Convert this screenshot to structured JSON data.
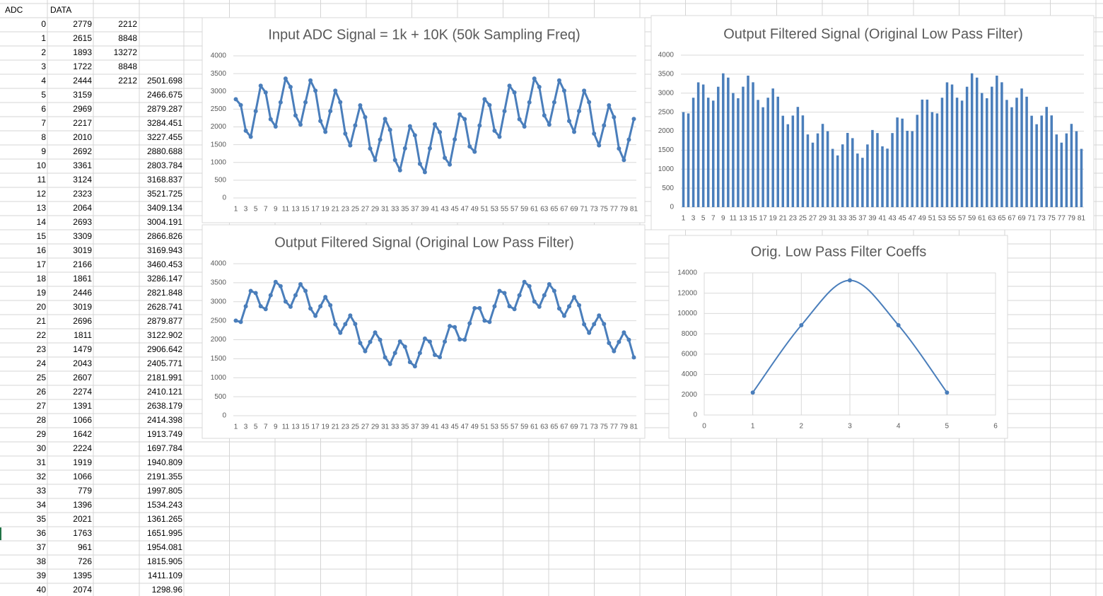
{
  "sheet": {
    "headers": [
      "ADC",
      "DATA"
    ],
    "rows": [
      {
        "adc": 0,
        "data": 2779,
        "coeff": 2212
      },
      {
        "adc": 1,
        "data": 2615,
        "coeff": 8848
      },
      {
        "adc": 2,
        "data": 1893,
        "coeff": 13272
      },
      {
        "adc": 3,
        "data": 1722,
        "coeff": 8848
      },
      {
        "adc": 4,
        "data": 2444,
        "coeff": 2212,
        "filtered": 2501.698
      },
      {
        "adc": 5,
        "data": 3159,
        "filtered": 2466.675
      },
      {
        "adc": 6,
        "data": 2969,
        "filtered": 2879.287
      },
      {
        "adc": 7,
        "data": 2217,
        "filtered": 3284.451
      },
      {
        "adc": 8,
        "data": 2010,
        "filtered": 3227.455
      },
      {
        "adc": 9,
        "data": 2692,
        "filtered": 2880.688
      },
      {
        "adc": 10,
        "data": 3361,
        "filtered": 2803.784
      },
      {
        "adc": 11,
        "data": 3124,
        "filtered": 3168.837
      },
      {
        "adc": 12,
        "data": 2323,
        "filtered": 3521.725
      },
      {
        "adc": 13,
        "data": 2064,
        "filtered": 3409.134
      },
      {
        "adc": 14,
        "data": 2693,
        "filtered": 3004.191
      },
      {
        "adc": 15,
        "data": 3309,
        "filtered": 2866.826
      },
      {
        "adc": 16,
        "data": 3019,
        "filtered": 3169.943
      },
      {
        "adc": 17,
        "data": 2166,
        "filtered": 3460.453
      },
      {
        "adc": 18,
        "data": 1861,
        "filtered": 3286.147
      },
      {
        "adc": 19,
        "data": 2446,
        "filtered": 2821.848
      },
      {
        "adc": 20,
        "data": 3019,
        "filtered": 2628.741
      },
      {
        "adc": 21,
        "data": 2696,
        "filtered": 2879.877
      },
      {
        "adc": 22,
        "data": 1811,
        "filtered": 3122.902
      },
      {
        "adc": 23,
        "data": 1479,
        "filtered": 2906.642
      },
      {
        "adc": 24,
        "data": 2043,
        "filtered": 2405.771
      },
      {
        "adc": 25,
        "data": 2607,
        "filtered": 2181.991
      },
      {
        "adc": 26,
        "data": 2274,
        "filtered": 2410.121
      },
      {
        "adc": 27,
        "data": 1391,
        "filtered": 2638.179
      },
      {
        "adc": 28,
        "data": 1066,
        "filtered": 2414.398
      },
      {
        "adc": 29,
        "data": 1642,
        "filtered": 1913.749
      },
      {
        "adc": 30,
        "data": 2224,
        "filtered": 1697.784
      },
      {
        "adc": 31,
        "data": 1919,
        "filtered": 1940.809
      },
      {
        "adc": 32,
        "data": 1066,
        "filtered": 2191.355
      },
      {
        "adc": 33,
        "data": 779,
        "filtered": 1997.805
      },
      {
        "adc": 34,
        "data": 1396,
        "filtered": 1534.243
      },
      {
        "adc": 35,
        "data": 2021,
        "filtered": 1361.265
      },
      {
        "adc": 36,
        "data": 1763,
        "filtered": 1651.995
      },
      {
        "adc": 37,
        "data": 961,
        "filtered": 1954.081
      },
      {
        "adc": 38,
        "data": 726,
        "filtered": 1815.905
      },
      {
        "adc": 39,
        "data": 1395,
        "filtered": 1411.109
      },
      {
        "adc": 40,
        "data": 2074,
        "filtered": 1298.96
      }
    ]
  },
  "chart_data": [
    {
      "type": "line",
      "title": "Input ADC Signal = 1k + 10K (50k Sampling Freq)",
      "color": "#4a7ebb",
      "grid": true,
      "categories": [
        1,
        null,
        3,
        null,
        5,
        null,
        7,
        null,
        9,
        null,
        11,
        null,
        13,
        null,
        15,
        null,
        17,
        null,
        19,
        null,
        21,
        null,
        23,
        null,
        25,
        null,
        27,
        null,
        29,
        null,
        31,
        null,
        33,
        null,
        35,
        null,
        37,
        null,
        39,
        null,
        41,
        null,
        43,
        null,
        45,
        null,
        47,
        null,
        49,
        null,
        51,
        null,
        53,
        null,
        55,
        null,
        57,
        null,
        59,
        null,
        61,
        null,
        63,
        null,
        65,
        null,
        67,
        null,
        69,
        null,
        71,
        null,
        73,
        null,
        75,
        null,
        77,
        null,
        79,
        null,
        81
      ],
      "values": [
        2779,
        2615,
        1893,
        1722,
        2444,
        3159,
        2969,
        2217,
        2010,
        2692,
        3361,
        3124,
        2323,
        2064,
        2693,
        3309,
        3019,
        2166,
        1861,
        2446,
        3019,
        2696,
        1811,
        1479,
        2043,
        2607,
        2274,
        1391,
        1066,
        1642,
        2224,
        1919,
        1066,
        779,
        1396,
        2021,
        1763,
        961,
        726,
        1395,
        2074,
        1850,
        1130,
        940,
        1650,
        2350,
        2220,
        1450,
        1300,
        2040,
        2779,
        2615,
        1893,
        1722,
        2444,
        3159,
        2969,
        2217,
        2010,
        2692,
        3361,
        3124,
        2323,
        2064,
        2693,
        3309,
        3019,
        2166,
        1861,
        2446,
        3019,
        2696,
        1811,
        1479,
        2043,
        2607,
        2274,
        1391,
        1066,
        1642,
        2224
      ],
      "ylim": [
        0,
        4000
      ],
      "yticks": [
        0,
        500,
        1000,
        1500,
        2000,
        2500,
        3000,
        3500,
        4000
      ]
    },
    {
      "type": "bar",
      "title": "Output Filtered Signal (Original Low Pass Filter)",
      "color": "#4a7ebb",
      "grid": true,
      "categories": [
        1,
        null,
        3,
        null,
        5,
        null,
        7,
        null,
        9,
        null,
        11,
        null,
        13,
        null,
        15,
        null,
        17,
        null,
        19,
        null,
        21,
        null,
        23,
        null,
        25,
        null,
        27,
        null,
        29,
        null,
        31,
        null,
        33,
        null,
        35,
        null,
        37,
        null,
        39,
        null,
        41,
        null,
        43,
        null,
        45,
        null,
        47,
        null,
        49,
        null,
        51,
        null,
        53,
        null,
        55,
        null,
        57,
        null,
        59,
        null,
        61,
        null,
        63,
        null,
        65,
        null,
        67,
        null,
        69,
        null,
        71,
        null,
        73,
        null,
        75,
        null,
        77,
        null,
        79,
        null,
        81
      ],
      "values": [
        2501.698,
        2466.675,
        2879.287,
        3284.451,
        3227.455,
        2880.688,
        2803.784,
        3168.837,
        3521.725,
        3409.134,
        3004.191,
        2866.826,
        3169.943,
        3460.453,
        3286.147,
        2821.848,
        2628.741,
        2879.877,
        3122.902,
        2906.642,
        2405.771,
        2181.991,
        2410.121,
        2638.179,
        2414.398,
        1913.749,
        1697.784,
        1940.809,
        2191.355,
        1997.805,
        1534.243,
        1361.265,
        1651.995,
        1954.081,
        1815.905,
        1411.109,
        1298.96,
        1650,
        2030,
        1950,
        1600,
        1540,
        1950,
        2360,
        2330,
        2010,
        2000,
        2430,
        2830,
        2830,
        2501.698,
        2466.675,
        2879.287,
        3284.451,
        3227.455,
        2880.688,
        2803.784,
        3168.837,
        3521.725,
        3409.134,
        3004.191,
        2866.826,
        3169.943,
        3460.453,
        3286.147,
        2821.848,
        2628.741,
        2879.877,
        3122.902,
        2906.642,
        2405.771,
        2181.991,
        2410.121,
        2638.179,
        2414.398,
        1913.749,
        1697.784,
        1940.809,
        2191.355,
        1997.805,
        1534.243
      ],
      "ylim": [
        0,
        4000
      ],
      "yticks": [
        0,
        500,
        1000,
        1500,
        2000,
        2500,
        3000,
        3500,
        4000
      ]
    },
    {
      "type": "line",
      "title": "Output Filtered Signal (Original Low Pass Filter)",
      "color": "#4a7ebb",
      "grid": true,
      "categories": [
        1,
        null,
        3,
        null,
        5,
        null,
        7,
        null,
        9,
        null,
        11,
        null,
        13,
        null,
        15,
        null,
        17,
        null,
        19,
        null,
        21,
        null,
        23,
        null,
        25,
        null,
        27,
        null,
        29,
        null,
        31,
        null,
        33,
        null,
        35,
        null,
        37,
        null,
        39,
        null,
        41,
        null,
        43,
        null,
        45,
        null,
        47,
        null,
        49,
        null,
        51,
        null,
        53,
        null,
        55,
        null,
        57,
        null,
        59,
        null,
        61,
        null,
        63,
        null,
        65,
        null,
        67,
        null,
        69,
        null,
        71,
        null,
        73,
        null,
        75,
        null,
        77,
        null,
        79,
        null,
        81
      ],
      "values": [
        2501.698,
        2466.675,
        2879.287,
        3284.451,
        3227.455,
        2880.688,
        2803.784,
        3168.837,
        3521.725,
        3409.134,
        3004.191,
        2866.826,
        3169.943,
        3460.453,
        3286.147,
        2821.848,
        2628.741,
        2879.877,
        3122.902,
        2906.642,
        2405.771,
        2181.991,
        2410.121,
        2638.179,
        2414.398,
        1913.749,
        1697.784,
        1940.809,
        2191.355,
        1997.805,
        1534.243,
        1361.265,
        1651.995,
        1954.081,
        1815.905,
        1411.109,
        1298.96,
        1650,
        2030,
        1950,
        1600,
        1540,
        1950,
        2360,
        2330,
        2010,
        2000,
        2430,
        2830,
        2830,
        2501.698,
        2466.675,
        2879.287,
        3284.451,
        3227.455,
        2880.688,
        2803.784,
        3168.837,
        3521.725,
        3409.134,
        3004.191,
        2866.826,
        3169.943,
        3460.453,
        3286.147,
        2821.848,
        2628.741,
        2879.877,
        3122.902,
        2906.642,
        2405.771,
        2181.991,
        2410.121,
        2638.179,
        2414.398,
        1913.749,
        1697.784,
        1940.809,
        2191.355,
        1997.805,
        1534.243
      ],
      "ylim": [
        0,
        4000
      ],
      "yticks": [
        0,
        500,
        1000,
        1500,
        2000,
        2500,
        3000,
        3500,
        4000
      ]
    },
    {
      "type": "scatter",
      "smooth": true,
      "title": "Orig. Low Pass Filter Coeffs",
      "color": "#4a7ebb",
      "grid": true,
      "x": [
        1,
        2,
        3,
        4,
        5
      ],
      "values": [
        2212,
        8848,
        13272,
        8848,
        2212
      ],
      "xlim": [
        0,
        6
      ],
      "xticks": [
        0,
        1,
        2,
        3,
        4,
        5,
        6
      ],
      "ylim": [
        0,
        14000
      ],
      "yticks": [
        0,
        2000,
        4000,
        6000,
        8000,
        10000,
        12000,
        14000
      ]
    }
  ]
}
